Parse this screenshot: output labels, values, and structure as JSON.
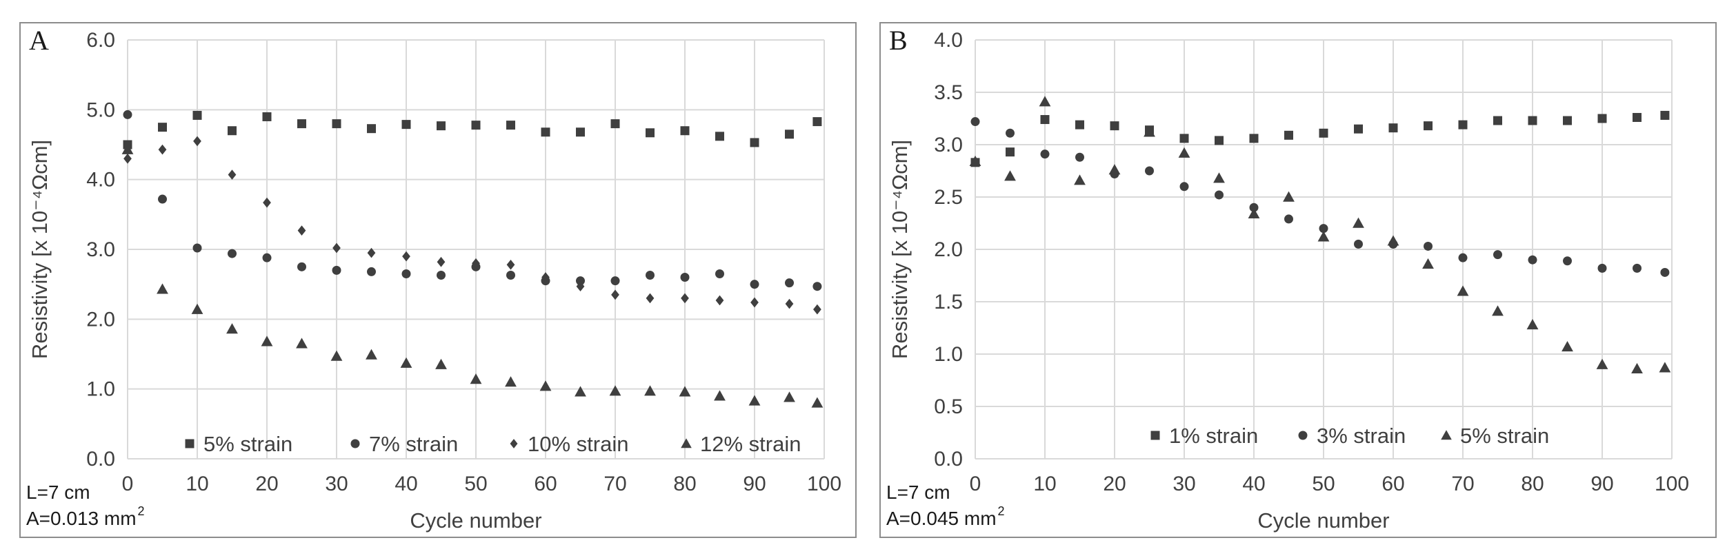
{
  "chart_data": [
    {
      "type": "scatter",
      "panel_label": "A",
      "xlabel": "Cycle number",
      "ylabel": "Resistivity [x 10⁻⁴Ωcm]",
      "xlim": [
        0,
        100
      ],
      "ylim": [
        0,
        6
      ],
      "x_ticks": [
        "0",
        "10",
        "20",
        "30",
        "40",
        "50",
        "60",
        "70",
        "80",
        "90",
        "100"
      ],
      "y_ticks": [
        "0.0",
        "1.0",
        "2.0",
        "3.0",
        "4.0",
        "5.0",
        "6.0"
      ],
      "grid": true,
      "legend_position": "bottom",
      "notes": {
        "length": "L=7 cm",
        "area": "A=0.013 mm",
        "area_sup": "2"
      },
      "series": [
        {
          "name": "5% strain",
          "marker": "square",
          "x": [
            0,
            5,
            10,
            15,
            20,
            25,
            30,
            35,
            40,
            45,
            50,
            55,
            60,
            65,
            70,
            75,
            80,
            85,
            90,
            95,
            99
          ],
          "y": [
            4.5,
            4.75,
            4.92,
            4.7,
            4.9,
            4.8,
            4.8,
            4.73,
            4.79,
            4.77,
            4.78,
            4.78,
            4.68,
            4.68,
            4.8,
            4.67,
            4.7,
            4.62,
            4.53,
            4.65,
            4.83
          ]
        },
        {
          "name": "7% strain",
          "marker": "circle",
          "x": [
            0,
            5,
            10,
            15,
            20,
            25,
            30,
            35,
            40,
            45,
            50,
            55,
            60,
            65,
            70,
            75,
            80,
            85,
            90,
            95,
            99
          ],
          "y": [
            4.93,
            3.72,
            3.02,
            2.94,
            2.88,
            2.75,
            2.7,
            2.68,
            2.65,
            2.63,
            2.75,
            2.63,
            2.55,
            2.55,
            2.55,
            2.63,
            2.6,
            2.65,
            2.5,
            2.52,
            2.47
          ]
        },
        {
          "name": "10% strain",
          "marker": "diamond",
          "x": [
            0,
            5,
            10,
            15,
            20,
            25,
            30,
            35,
            40,
            45,
            50,
            55,
            60,
            65,
            70,
            75,
            80,
            85,
            90,
            95,
            99
          ],
          "y": [
            4.3,
            4.43,
            4.55,
            4.07,
            3.67,
            3.27,
            3.02,
            2.95,
            2.9,
            2.82,
            2.8,
            2.78,
            2.6,
            2.47,
            2.35,
            2.3,
            2.3,
            2.27,
            2.24,
            2.22,
            2.14
          ]
        },
        {
          "name": "12% strain",
          "marker": "triangle",
          "x": [
            0,
            5,
            10,
            15,
            20,
            25,
            30,
            35,
            40,
            45,
            50,
            55,
            60,
            65,
            70,
            75,
            80,
            85,
            90,
            95,
            99
          ],
          "y": [
            4.43,
            2.43,
            2.14,
            1.86,
            1.68,
            1.65,
            1.47,
            1.49,
            1.37,
            1.35,
            1.14,
            1.1,
            1.04,
            0.96,
            0.97,
            0.97,
            0.96,
            0.9,
            0.83,
            0.88,
            0.8
          ]
        }
      ]
    },
    {
      "type": "scatter",
      "panel_label": "B",
      "xlabel": "Cycle number",
      "ylabel": "Resistivity [x 10⁻⁴Ωcm]",
      "xlim": [
        0,
        100
      ],
      "ylim": [
        0,
        4
      ],
      "x_ticks": [
        "0",
        "10",
        "20",
        "30",
        "40",
        "50",
        "60",
        "70",
        "80",
        "90",
        "100"
      ],
      "y_ticks": [
        "0.0",
        "0.5",
        "1.0",
        "1.5",
        "2.0",
        "2.5",
        "3.0",
        "3.5",
        "4.0"
      ],
      "grid": true,
      "legend_position": "bottom",
      "notes": {
        "length": "L=7 cm",
        "area": "A=0.045 mm",
        "area_sup": "2"
      },
      "series": [
        {
          "name": "1% strain",
          "marker": "square",
          "x": [
            0,
            5,
            10,
            15,
            20,
            25,
            30,
            35,
            40,
            45,
            50,
            55,
            60,
            65,
            70,
            75,
            80,
            85,
            90,
            95,
            99
          ],
          "y": [
            2.83,
            2.93,
            3.24,
            3.19,
            3.18,
            3.14,
            3.06,
            3.04,
            3.06,
            3.09,
            3.11,
            3.15,
            3.16,
            3.18,
            3.19,
            3.23,
            3.23,
            3.23,
            3.25,
            3.26,
            3.28
          ]
        },
        {
          "name": "3% strain",
          "marker": "circle",
          "x": [
            0,
            5,
            10,
            15,
            20,
            25,
            30,
            35,
            40,
            45,
            50,
            55,
            60,
            65,
            70,
            75,
            80,
            85,
            90,
            95,
            99
          ],
          "y": [
            3.22,
            3.11,
            2.91,
            2.88,
            2.72,
            2.75,
            2.6,
            2.52,
            2.4,
            2.29,
            2.2,
            2.05,
            2.05,
            2.03,
            1.92,
            1.95,
            1.9,
            1.89,
            1.82,
            1.82,
            1.78
          ]
        },
        {
          "name": "5% strain",
          "marker": "triangle",
          "x": [
            0,
            5,
            10,
            15,
            20,
            25,
            30,
            35,
            40,
            45,
            50,
            55,
            60,
            65,
            70,
            75,
            80,
            85,
            90,
            95,
            99
          ],
          "y": [
            2.84,
            2.7,
            3.41,
            2.66,
            2.76,
            3.12,
            2.92,
            2.68,
            2.34,
            2.5,
            2.12,
            2.25,
            2.08,
            1.86,
            1.6,
            1.41,
            1.28,
            1.07,
            0.9,
            0.86,
            0.87
          ]
        }
      ]
    }
  ]
}
